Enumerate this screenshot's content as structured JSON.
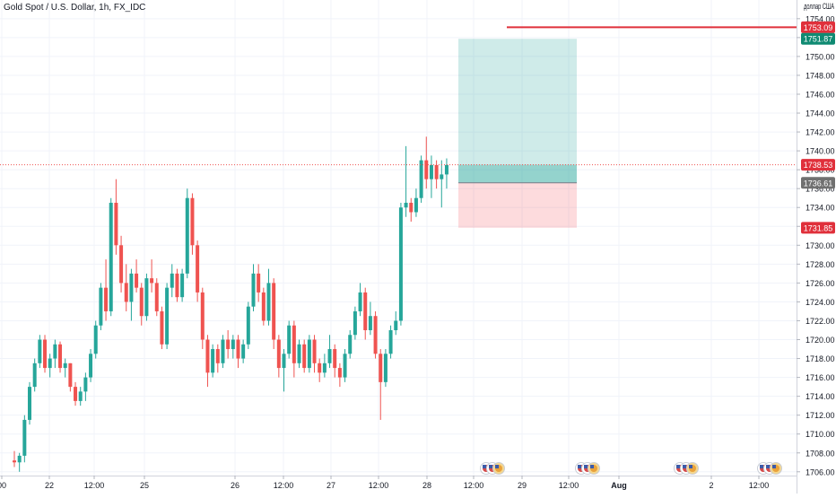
{
  "chart_data": {
    "type": "candlestick",
    "title": "Gold Spot / U.S. Dollar, 1h, FX_IDC",
    "currency_label": "доллар США",
    "x_ticks": [
      "00",
      "22",
      "12:00",
      "25",
      "26",
      "12:00",
      "27",
      "12:00",
      "28",
      "12:00",
      "29",
      "12:00",
      "Aug",
      "2",
      "12:00"
    ],
    "y_ticks": [
      "1754.00",
      "1752.00",
      "1750.00",
      "1748.00",
      "1746.00",
      "1744.00",
      "1742.00",
      "1740.00",
      "1738.00",
      "1736.00",
      "1734.00",
      "1732.00",
      "1730.00",
      "1728.00",
      "1726.00",
      "1724.00",
      "1722.00",
      "1720.00",
      "1718.00",
      "1716.00",
      "1714.00",
      "1712.00",
      "1710.00",
      "1708.00",
      "1706.00"
    ],
    "ylim": [
      1705.6,
      1755.6
    ],
    "grid": true,
    "price_tags": [
      {
        "label": "1753.09",
        "value": 1753.09,
        "color": "#e0303b",
        "role": "level line"
      },
      {
        "label": "1751.87",
        "value": 1751.87,
        "color": "#0f8a72",
        "role": "take profit"
      },
      {
        "label": "1738.53",
        "value": 1738.53,
        "color": "#e0303b",
        "role": "last price"
      },
      {
        "label": "1736.61",
        "value": 1736.61,
        "color": "#707070",
        "role": "entry"
      },
      {
        "label": "1731.85",
        "value": 1731.85,
        "color": "#e0303b",
        "role": "stop loss"
      }
    ],
    "position": {
      "type": "long",
      "entry": 1736.61,
      "target": 1751.87,
      "stop": 1731.85
    },
    "horizontal_line": 1753.09,
    "last_price": 1738.53,
    "event_icon_groups": 4,
    "ohlc": [
      [
        1707.2,
        1708.2,
        1706.5,
        1707.0
      ],
      [
        1707.0,
        1708.0,
        1706.0,
        1707.7
      ],
      [
        1707.7,
        1712.0,
        1707.0,
        1711.5
      ],
      [
        1711.5,
        1715.5,
        1711.0,
        1715.0
      ],
      [
        1715.0,
        1718.0,
        1714.5,
        1717.5
      ],
      [
        1717.5,
        1720.5,
        1717.0,
        1720.0
      ],
      [
        1720.0,
        1720.5,
        1716.5,
        1717.0
      ],
      [
        1717.0,
        1718.5,
        1716.0,
        1718.0
      ],
      [
        1718.0,
        1720.0,
        1717.0,
        1719.5
      ],
      [
        1719.5,
        1719.8,
        1716.5,
        1717.0
      ],
      [
        1717.0,
        1718.0,
        1716.0,
        1717.5
      ],
      [
        1717.5,
        1717.5,
        1714.5,
        1715.0
      ],
      [
        1715.0,
        1715.5,
        1713.0,
        1713.5
      ],
      [
        1713.5,
        1715.0,
        1713.0,
        1714.5
      ],
      [
        1714.5,
        1716.5,
        1713.5,
        1716.0
      ],
      [
        1716.0,
        1719.0,
        1715.5,
        1718.5
      ],
      [
        1718.5,
        1722.0,
        1718.0,
        1721.5
      ],
      [
        1721.5,
        1726.0,
        1721.0,
        1725.5
      ],
      [
        1725.5,
        1728.5,
        1722.0,
        1723.0
      ],
      [
        1723.0,
        1735.0,
        1722.5,
        1734.5
      ],
      [
        1734.5,
        1737.0,
        1729.0,
        1730.0
      ],
      [
        1730.0,
        1731.0,
        1725.0,
        1726.0
      ],
      [
        1726.0,
        1728.0,
        1723.0,
        1724.0
      ],
      [
        1724.0,
        1727.5,
        1722.0,
        1727.0
      ],
      [
        1727.0,
        1728.5,
        1725.0,
        1725.5
      ],
      [
        1725.5,
        1726.0,
        1721.5,
        1722.5
      ],
      [
        1722.5,
        1727.0,
        1722.0,
        1726.5
      ],
      [
        1726.5,
        1728.5,
        1725.0,
        1726.0
      ],
      [
        1726.0,
        1726.5,
        1722.5,
        1723.0
      ],
      [
        1723.0,
        1723.5,
        1719.0,
        1719.5
      ],
      [
        1719.5,
        1726.0,
        1719.0,
        1725.5
      ],
      [
        1725.5,
        1728.0,
        1724.5,
        1727.0
      ],
      [
        1727.0,
        1727.5,
        1724.0,
        1724.5
      ],
      [
        1724.5,
        1727.5,
        1724.0,
        1727.0
      ],
      [
        1727.0,
        1736.0,
        1726.5,
        1735.0
      ],
      [
        1735.0,
        1735.5,
        1729.0,
        1730.0
      ],
      [
        1730.0,
        1730.5,
        1724.0,
        1725.0
      ],
      [
        1725.0,
        1725.5,
        1719.0,
        1720.0
      ],
      [
        1720.0,
        1720.5,
        1715.0,
        1716.5
      ],
      [
        1716.5,
        1719.5,
        1716.0,
        1719.0
      ],
      [
        1719.0,
        1719.5,
        1716.5,
        1717.5
      ],
      [
        1717.5,
        1720.5,
        1717.0,
        1720.0
      ],
      [
        1720.0,
        1721.0,
        1718.0,
        1719.0
      ],
      [
        1719.0,
        1720.5,
        1718.0,
        1720.0
      ],
      [
        1720.0,
        1720.5,
        1717.0,
        1718.0
      ],
      [
        1718.0,
        1720.0,
        1717.5,
        1719.5
      ],
      [
        1719.5,
        1724.0,
        1719.0,
        1723.5
      ],
      [
        1723.5,
        1728.0,
        1723.0,
        1727.0
      ],
      [
        1727.0,
        1728.0,
        1724.0,
        1725.0
      ],
      [
        1725.0,
        1725.5,
        1721.5,
        1722.0
      ],
      [
        1722.0,
        1727.5,
        1721.5,
        1726.0
      ],
      [
        1726.0,
        1726.5,
        1719.0,
        1720.0
      ],
      [
        1720.0,
        1720.5,
        1716.0,
        1717.0
      ],
      [
        1717.0,
        1719.0,
        1714.5,
        1718.5
      ],
      [
        1718.5,
        1722.0,
        1718.0,
        1721.5
      ],
      [
        1721.5,
        1722.0,
        1716.0,
        1717.5
      ],
      [
        1717.5,
        1720.0,
        1717.0,
        1719.5
      ],
      [
        1719.5,
        1720.0,
        1716.5,
        1717.0
      ],
      [
        1717.0,
        1720.5,
        1716.5,
        1720.0
      ],
      [
        1720.0,
        1720.5,
        1716.5,
        1717.5
      ],
      [
        1717.5,
        1718.0,
        1715.5,
        1716.5
      ],
      [
        1716.5,
        1718.5,
        1716.0,
        1717.5
      ],
      [
        1717.5,
        1720.5,
        1717.0,
        1719.0
      ],
      [
        1719.0,
        1719.5,
        1716.0,
        1717.0
      ],
      [
        1717.0,
        1717.5,
        1715.0,
        1716.0
      ],
      [
        1716.0,
        1719.0,
        1715.5,
        1718.5
      ],
      [
        1718.5,
        1721.0,
        1718.0,
        1720.5
      ],
      [
        1720.5,
        1723.5,
        1720.0,
        1723.0
      ],
      [
        1723.0,
        1726.0,
        1722.5,
        1725.0
      ],
      [
        1725.0,
        1725.5,
        1720.0,
        1721.0
      ],
      [
        1721.0,
        1724.0,
        1720.5,
        1722.5
      ],
      [
        1722.5,
        1723.0,
        1718.0,
        1718.5
      ],
      [
        1718.5,
        1719.0,
        1711.5,
        1715.5
      ],
      [
        1715.5,
        1719.0,
        1715.0,
        1718.5
      ],
      [
        1718.5,
        1721.5,
        1718.0,
        1721.0
      ],
      [
        1721.0,
        1723.0,
        1720.5,
        1722.0
      ],
      [
        1722.0,
        1734.5,
        1721.5,
        1734.0
      ],
      [
        1734.0,
        1740.5,
        1733.0,
        1734.5
      ],
      [
        1734.5,
        1735.0,
        1732.5,
        1733.5
      ],
      [
        1733.5,
        1736.0,
        1733.0,
        1735.0
      ],
      [
        1735.0,
        1739.5,
        1734.5,
        1739.0
      ],
      [
        1739.0,
        1741.5,
        1736.0,
        1737.0
      ],
      [
        1737.0,
        1739.5,
        1735.0,
        1738.5
      ],
      [
        1738.5,
        1739.0,
        1736.0,
        1737.0
      ],
      [
        1737.0,
        1739.0,
        1734.0,
        1737.5
      ],
      [
        1737.5,
        1739.2,
        1736.0,
        1738.5
      ]
    ]
  }
}
